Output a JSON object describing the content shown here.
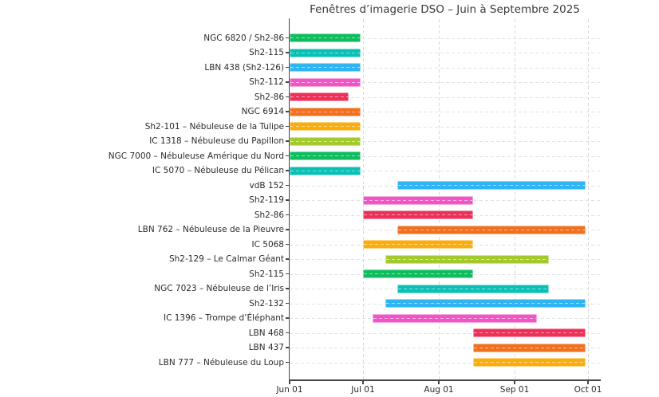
{
  "chart_data": {
    "type": "bar",
    "subtype": "horizontal-gantt",
    "title": "Fenêtres d’imagerie DSO – Juin à Septembre 2025",
    "xlabel": "",
    "ylabel": "",
    "grid": true,
    "legend": false,
    "x_axis": {
      "tick_labels": [
        "Jun 01",
        "Jul 01",
        "Aug 01",
        "Sep 01",
        "Oct 01"
      ],
      "tick_dates": [
        "2025-06-01",
        "2025-07-01",
        "2025-08-01",
        "2025-09-01",
        "2025-10-01"
      ]
    },
    "palette": {
      "green": "#0fbd5f",
      "teal": "#0abfb4",
      "blue": "#30b4f2",
      "pink": "#f055c6",
      "crimson": "#ee2f58",
      "orange": "#f0701f",
      "amber": "#fbad0e",
      "yellowgreen": "#a4c92f"
    },
    "tasks": [
      {
        "label": "NGC 6820 / Sh2-86",
        "start": "2025-06-01",
        "end": "2025-06-30",
        "color": "#0fbd5f"
      },
      {
        "label": "Sh2-115",
        "start": "2025-06-01",
        "end": "2025-06-30",
        "color": "#0abfb4"
      },
      {
        "label": "LBN 438 (Sh2-126)",
        "start": "2025-06-01",
        "end": "2025-06-30",
        "color": "#30b4f2"
      },
      {
        "label": "Sh2-112",
        "start": "2025-06-01",
        "end": "2025-06-30",
        "color": "#f055c6"
      },
      {
        "label": "Sh2-86",
        "start": "2025-06-01",
        "end": "2025-06-25",
        "color": "#ee2f58"
      },
      {
        "label": "NGC 6914",
        "start": "2025-06-01",
        "end": "2025-06-30",
        "color": "#f0701f"
      },
      {
        "label": "Sh2-101 – Nébuleuse de la Tulipe",
        "start": "2025-06-01",
        "end": "2025-06-30",
        "color": "#fbad0e"
      },
      {
        "label": "IC 1318 – Nébuleuse du Papillon",
        "start": "2025-06-01",
        "end": "2025-06-30",
        "color": "#a4c92f"
      },
      {
        "label": "NGC 7000 – Nébuleuse Amérique du Nord",
        "start": "2025-06-01",
        "end": "2025-06-30",
        "color": "#0fbd5f"
      },
      {
        "label": "IC 5070 – Nébuleuse du Pélican",
        "start": "2025-06-01",
        "end": "2025-06-30",
        "color": "#0abfb4"
      },
      {
        "label": "vdB 152",
        "start": "2025-07-15",
        "end": "2025-09-30",
        "color": "#30b4f2"
      },
      {
        "label": "Sh2-119",
        "start": "2025-07-01",
        "end": "2025-08-15",
        "color": "#f055c6"
      },
      {
        "label": "Sh2-86",
        "start": "2025-07-01",
        "end": "2025-08-15",
        "color": "#ee2f58"
      },
      {
        "label": "LBN 762 – Nébuleuse de la Pieuvre",
        "start": "2025-07-15",
        "end": "2025-09-30",
        "color": "#f0701f"
      },
      {
        "label": "IC 5068",
        "start": "2025-07-01",
        "end": "2025-08-15",
        "color": "#fbad0e"
      },
      {
        "label": "Sh2-129 – Le Calmar Géant",
        "start": "2025-07-10",
        "end": "2025-09-15",
        "color": "#a4c92f"
      },
      {
        "label": "Sh2-115",
        "start": "2025-07-01",
        "end": "2025-08-15",
        "color": "#0fbd5f"
      },
      {
        "label": "NGC 7023 – Nébuleuse de l’Iris",
        "start": "2025-07-15",
        "end": "2025-09-15",
        "color": "#0abfb4"
      },
      {
        "label": "Sh2-132",
        "start": "2025-07-10",
        "end": "2025-09-30",
        "color": "#30b4f2"
      },
      {
        "label": "IC 1396 – Trompe d’Éléphant",
        "start": "2025-07-05",
        "end": "2025-09-10",
        "color": "#f055c6"
      },
      {
        "label": "LBN 468",
        "start": "2025-08-15",
        "end": "2025-09-30",
        "color": "#ee2f58"
      },
      {
        "label": "LBN 437",
        "start": "2025-08-15",
        "end": "2025-09-30",
        "color": "#f0701f"
      },
      {
        "label": "LBN 777 – Nébuleuse du Loup",
        "start": "2025-08-15",
        "end": "2025-09-30",
        "color": "#fbad0e"
      }
    ]
  }
}
